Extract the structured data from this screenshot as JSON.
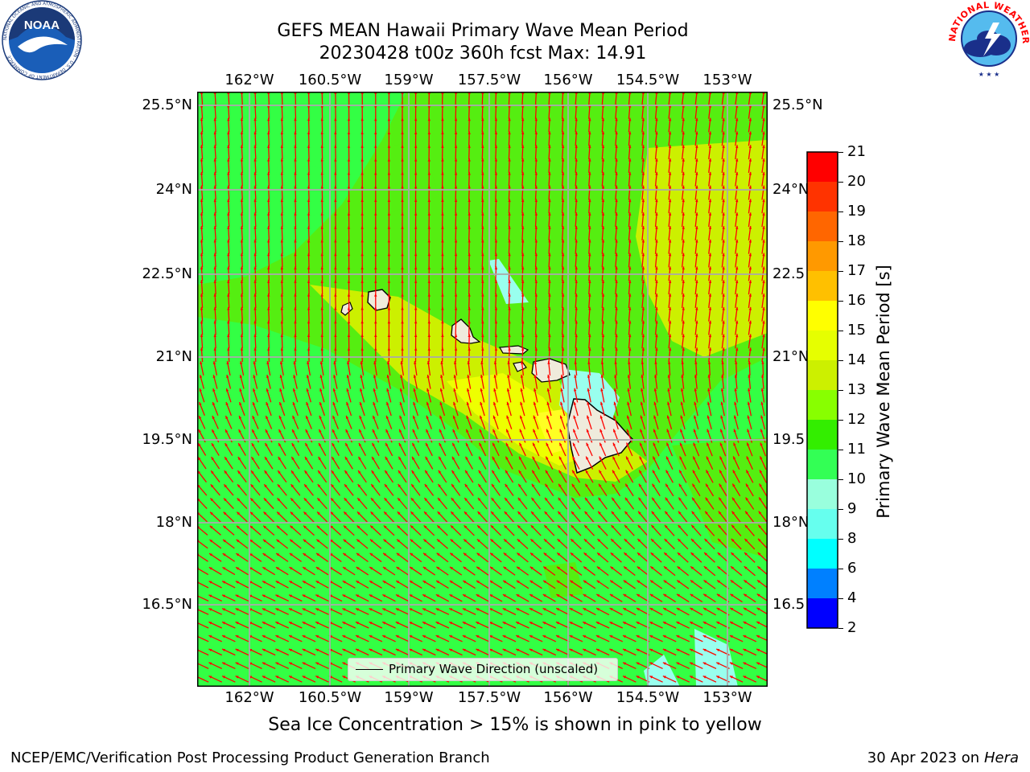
{
  "title": {
    "line1": "GEFS MEAN Hawaii Primary Wave Mean Period",
    "line2": "20230428 t00z 360h fcst   Max: 14.91"
  },
  "subnote": "Sea Ice Concentration > 15% is shown in pink to yellow",
  "footer": {
    "left": "NCEP/EMC/Verification Post Processing Product Generation Branch",
    "right_prefix": "30 Apr 2023 on ",
    "right_host": "Hera"
  },
  "logos": {
    "noaa": {
      "center_text": "NOAA",
      "ring_text": "NATIONAL OCEANIC AND ATMOSPHERIC ADMINISTRATION · U.S. DEPARTMENT OF COMMERCE"
    },
    "nws": {
      "ring_text": "NATIONAL WEATHER SERVICE"
    }
  },
  "map": {
    "lon_labels": [
      "162°W",
      "160.5°W",
      "159°W",
      "157.5°W",
      "156°W",
      "154.5°W",
      "153°W"
    ],
    "lat_labels_left": [
      "25.5°N",
      "24°N",
      "22.5°N",
      "21°N",
      "19.5°N",
      "18°N",
      "16.5°N"
    ],
    "lat_labels_right": [
      "25.5°N",
      "24°N",
      "22.5",
      "21°N",
      "19.5",
      "18°N",
      "16.5"
    ],
    "legend_label": "Primary Wave Direction (unscaled)",
    "arrow_color": "#ff0000",
    "land_color": "#efebdc",
    "field_colors": {
      "green": "#33ff44",
      "lime": "#55ee11",
      "yellowgreen": "#ccf000",
      "yellow": "#ffff00",
      "aqua": "#99ffee"
    }
  },
  "colorbar": {
    "title": "Primary Wave Mean Period [s]",
    "tick_labels": [
      "21",
      "20",
      "19",
      "18",
      "17",
      "16",
      "15",
      "14",
      "13",
      "12",
      "11",
      "10",
      "9",
      "8",
      "6",
      "4",
      "2"
    ],
    "colors_top_to_bottom": [
      "#ff0000",
      "#ff3300",
      "#ff6600",
      "#ff9900",
      "#ffc000",
      "#ffff00",
      "#e6ff00",
      "#ccf000",
      "#88ff00",
      "#33ee00",
      "#33ff55",
      "#99ffdd",
      "#66ffee",
      "#00ffff",
      "#0080ff",
      "#0000ff"
    ]
  }
}
